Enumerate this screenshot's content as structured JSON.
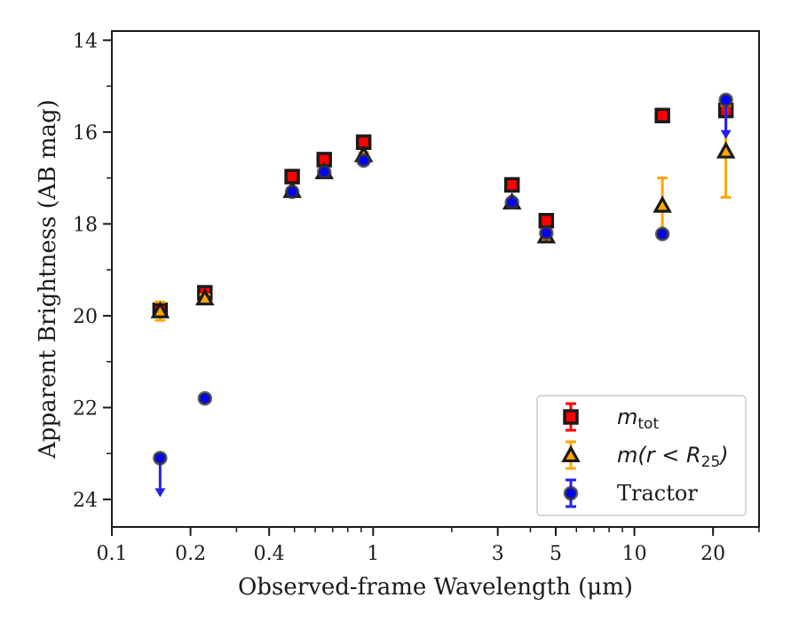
{
  "chart_data": {
    "type": "scatter",
    "xlabel": "Observed-frame Wavelength (μm)",
    "ylabel": "Apparent Brightness (AB mag)",
    "x_scale": "log",
    "xlim": [
      0.1,
      30
    ],
    "ylim": [
      24.6,
      13.8
    ],
    "y_inverted": true,
    "x_ticks": [
      {
        "value": 0.1,
        "label": "0.1"
      },
      {
        "value": 0.2,
        "label": "0.2"
      },
      {
        "value": 0.4,
        "label": "0.4"
      },
      {
        "value": 1,
        "label": "1"
      },
      {
        "value": 3,
        "label": "3"
      },
      {
        "value": 5,
        "label": "5"
      },
      {
        "value": 10,
        "label": "10"
      },
      {
        "value": 20,
        "label": "20"
      }
    ],
    "y_ticks": [
      {
        "value": 14,
        "label": "14"
      },
      {
        "value": 16,
        "label": "16"
      },
      {
        "value": 18,
        "label": "18"
      },
      {
        "value": 20,
        "label": "20"
      },
      {
        "value": 22,
        "label": "22"
      },
      {
        "value": 24,
        "label": "24"
      }
    ],
    "grid": false,
    "legend_position": "lower-right",
    "series": [
      {
        "name": "m_tot",
        "legend": {
          "base": "m",
          "sub": "tot"
        },
        "marker": "square",
        "face_color": "#ff0000",
        "edge_color": "#1a1a1a",
        "err_color": "#ff0000",
        "points": [
          {
            "x": 0.153,
            "y": 19.88,
            "err": 0.08
          },
          {
            "x": 0.227,
            "y": 19.5,
            "err": 0.05
          },
          {
            "x": 0.49,
            "y": 16.97,
            "err": 0.05
          },
          {
            "x": 0.65,
            "y": 16.6,
            "err": 0.05
          },
          {
            "x": 0.92,
            "y": 16.22,
            "err": 0.05
          },
          {
            "x": 3.4,
            "y": 17.15,
            "err": 0.05
          },
          {
            "x": 4.6,
            "y": 17.93,
            "err": 0.05
          },
          {
            "x": 12.8,
            "y": 15.64,
            "err": 0.05
          },
          {
            "x": 22.4,
            "y": 15.53,
            "err": 0.05
          }
        ]
      },
      {
        "name": "m(r < R25)",
        "legend": {
          "base": "m(r < R",
          "sub": "25",
          "tail": ")"
        },
        "marker": "triangle",
        "face_color": "#ffa500",
        "edge_color": "#1a1a1a",
        "err_color": "#ffa500",
        "points": [
          {
            "x": 0.153,
            "y": 19.9,
            "err": 0.2
          },
          {
            "x": 0.227,
            "y": 19.62,
            "err": 0.08
          },
          {
            "x": 0.49,
            "y": 17.28,
            "err": 0.05
          },
          {
            "x": 0.65,
            "y": 16.87,
            "err": 0.05
          },
          {
            "x": 0.92,
            "y": 16.5,
            "err": 0.05
          },
          {
            "x": 3.4,
            "y": 17.53,
            "err": 0.05
          },
          {
            "x": 4.6,
            "y": 18.27,
            "err": 0.05
          },
          {
            "x": 12.8,
            "y": 17.6,
            "err": 0.6
          },
          {
            "x": 22.4,
            "y": 16.42,
            "err": 1.0
          }
        ]
      },
      {
        "name": "Tractor",
        "legend": {
          "base": "Tractor"
        },
        "marker": "circle",
        "face_color": "#0000ff",
        "edge_color": "#1a1a1a",
        "err_color": "#2222ee",
        "points": [
          {
            "x": 0.153,
            "y": 23.1,
            "err": 0.05,
            "upper_limit": true
          },
          {
            "x": 0.227,
            "y": 21.8,
            "err": 0.05
          },
          {
            "x": 0.49,
            "y": 17.3,
            "err": 0.05
          },
          {
            "x": 0.65,
            "y": 16.87,
            "err": 0.05
          },
          {
            "x": 0.92,
            "y": 16.62,
            "err": 0.05
          },
          {
            "x": 3.4,
            "y": 17.53,
            "err": 0.05
          },
          {
            "x": 4.6,
            "y": 18.2,
            "err": 0.05
          },
          {
            "x": 12.8,
            "y": 18.22,
            "err": 0.05
          },
          {
            "x": 22.4,
            "y": 15.3,
            "err": 0.05,
            "upper_limit": true
          }
        ]
      }
    ]
  }
}
